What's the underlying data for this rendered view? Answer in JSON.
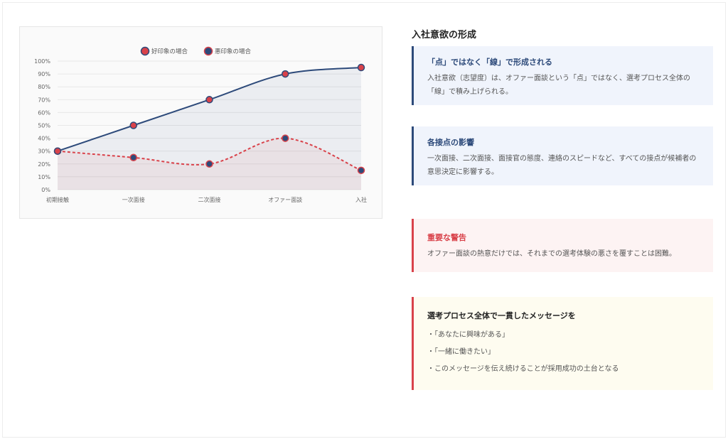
{
  "chart_data": {
    "type": "line",
    "categories": [
      "初期接触",
      "一次面接",
      "二次面接",
      "オファー面談",
      "入社"
    ],
    "series": [
      {
        "name": "好印象の場合",
        "values": [
          30,
          50,
          70,
          90,
          95
        ],
        "line_color": "#2d4a7a",
        "point_color": "#d9424a",
        "fill": "#2d4a7a",
        "dashed": false
      },
      {
        "name": "悪印象の場合",
        "values": [
          30,
          25,
          20,
          40,
          15
        ],
        "line_color": "#d9424a",
        "point_color": "#2d4a7a",
        "fill": "#d9424a",
        "dashed": true
      }
    ],
    "ylim": [
      0,
      100
    ],
    "yticks": [
      "0%",
      "10%",
      "20%",
      "30%",
      "40%",
      "50%",
      "60%",
      "70%",
      "80%",
      "90%",
      "100%"
    ],
    "grid": true,
    "legend": "top"
  },
  "sidebar": {
    "title": "入社意欲の形成",
    "cards": [
      {
        "title": "「点」ではなく「線」で形成される",
        "body": "入社意欲（志望度）は、オファー面談という「点」ではなく、選考プロセス全体の「線」で積み上げられる。"
      },
      {
        "title": "各接点の影響",
        "body": "一次面接、二次面接、面接官の態度、連絡のスピードなど、すべての接点が候補者の意思決定に影響する。"
      },
      {
        "title": "重要な警告",
        "body": "オファー面談の熱意だけでは、それまでの選考体験の悪さを覆すことは困難。"
      },
      {
        "title": "選考プロセス全体で一貫したメッセージを",
        "items": [
          "・「あなたに興味がある」",
          "・「一緒に働きたい」",
          "・このメッセージを伝え続けることが採用成功の土台となる"
        ]
      }
    ]
  }
}
